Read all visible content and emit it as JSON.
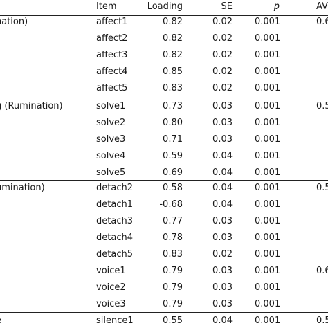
{
  "columns": {
    "item": "Item",
    "loading": "Loading",
    "se": "SE",
    "p": "p",
    "ave": "AV"
  },
  "factors": [
    "nation)",
    "g (Rumination)",
    "umination)",
    "",
    "e"
  ],
  "rows": [
    {
      "item": "affect1",
      "loading": "0.82",
      "se": "0.02",
      "p": "0.001",
      "ave": "0.6"
    },
    {
      "item": "affect2",
      "loading": "0.82",
      "se": "0.02",
      "p": "0.001",
      "ave": ""
    },
    {
      "item": "affect3",
      "loading": "0.82",
      "se": "0.02",
      "p": "0.001",
      "ave": ""
    },
    {
      "item": "affect4",
      "loading": "0.85",
      "se": "0.02",
      "p": "0.001",
      "ave": ""
    },
    {
      "item": "affect5",
      "loading": "0.83",
      "se": "0.02",
      "p": "0.001",
      "ave": ""
    },
    {
      "item": "solve1",
      "loading": "0.73",
      "se": "0.03",
      "p": "0.001",
      "ave": "0.5"
    },
    {
      "item": "solve2",
      "loading": "0.80",
      "se": "0.03",
      "p": "0.001",
      "ave": ""
    },
    {
      "item": "solve3",
      "loading": "0.71",
      "se": "0.03",
      "p": "0.001",
      "ave": ""
    },
    {
      "item": "solve4",
      "loading": "0.59",
      "se": "0.04",
      "p": "0.001",
      "ave": ""
    },
    {
      "item": "solve5",
      "loading": "0.69",
      "se": "0.04",
      "p": "0.001",
      "ave": ""
    },
    {
      "item": "detach2",
      "loading": "0.58",
      "se": "0.04",
      "p": "0.001",
      "ave": "0.5"
    },
    {
      "item": "detach1",
      "loading": "-0.68",
      "se": "0.04",
      "p": "0.001",
      "ave": ""
    },
    {
      "item": "detach3",
      "loading": "0.77",
      "se": "0.03",
      "p": "0.001",
      "ave": ""
    },
    {
      "item": "detach4",
      "loading": "0.78",
      "se": "0.03",
      "p": "0.001",
      "ave": ""
    },
    {
      "item": "detach5",
      "loading": "0.83",
      "se": "0.02",
      "p": "0.001",
      "ave": ""
    },
    {
      "item": "voice1",
      "loading": "0.79",
      "se": "0.03",
      "p": "0.001",
      "ave": "0.6"
    },
    {
      "item": "voice2",
      "loading": "0.79",
      "se": "0.03",
      "p": "0.001",
      "ave": ""
    },
    {
      "item": "voice3",
      "loading": "0.79",
      "se": "0.03",
      "p": "0.001",
      "ave": ""
    },
    {
      "item": "silence1",
      "loading": "0.55",
      "se": "0.04",
      "p": "0.001",
      "ave": "0.5"
    }
  ]
}
